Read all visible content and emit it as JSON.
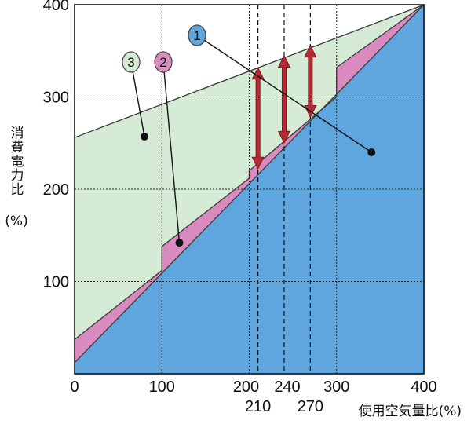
{
  "chart_data": {
    "type": "area",
    "xlim": [
      0,
      400
    ],
    "ylim": [
      0,
      400
    ],
    "x_ticks": [
      {
        "value": 0,
        "label": "0"
      },
      {
        "value": 100,
        "label": "100"
      },
      {
        "value": 200,
        "label": "200"
      },
      {
        "value": 240,
        "label": "240"
      },
      {
        "value": 300,
        "label": "300"
      },
      {
        "value": 400,
        "label": "400"
      }
    ],
    "x_ticks_second_row": [
      {
        "value": 210,
        "label": "210"
      },
      {
        "value": 270,
        "label": "270"
      }
    ],
    "y_ticks": [
      {
        "value": 100,
        "label": "100"
      },
      {
        "value": 200,
        "label": "200"
      },
      {
        "value": 300,
        "label": "300"
      },
      {
        "value": 400,
        "label": "400"
      }
    ],
    "ylabel_chars": [
      "消",
      "費",
      "電",
      "力",
      "比"
    ],
    "ylabel_unit": "(%)",
    "xlabel": "使用空気量比(%)",
    "grid": true,
    "series": [
      {
        "name": "3",
        "color": "#d6ebd6",
        "points": [
          [
            0,
            256
          ],
          [
            400,
            400
          ]
        ]
      },
      {
        "name": "2",
        "color": "#d98bbf",
        "points": [
          [
            0,
            37
          ],
          [
            100,
            112
          ],
          [
            100,
            138
          ],
          [
            200,
            212
          ],
          [
            200,
            220
          ],
          [
            300,
            300
          ],
          [
            300,
            332
          ],
          [
            400,
            400
          ]
        ]
      },
      {
        "name": "1",
        "color": "#5ea6dd",
        "points": [
          [
            0,
            12
          ],
          [
            400,
            400
          ]
        ]
      }
    ],
    "double_arrows": [
      {
        "x": 210,
        "y_from": 222,
        "y_to": 332,
        "color": "#b22a32"
      },
      {
        "x": 240,
        "y_from": 250,
        "y_to": 345,
        "color": "#b22a32"
      },
      {
        "x": 270,
        "y_from": 278,
        "y_to": 356,
        "color": "#b22a32"
      }
    ],
    "dashed_verticals": [
      210,
      240,
      270
    ],
    "solid_verticals": [
      100,
      200,
      300
    ],
    "callouts": [
      {
        "label": "1",
        "fill": "#5ea6dd",
        "target": [
          340,
          240
        ]
      },
      {
        "label": "2",
        "fill": "#d98bbf",
        "target": [
          120,
          142
        ]
      },
      {
        "label": "3",
        "fill": "#d6ebd6",
        "target": [
          80,
          257
        ]
      }
    ]
  }
}
